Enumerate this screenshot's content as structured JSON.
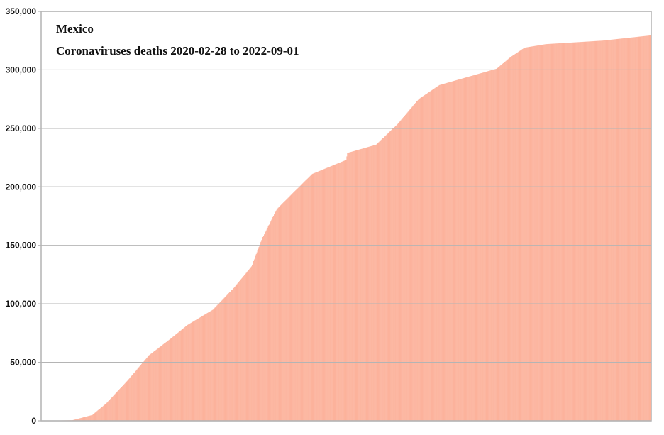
{
  "chart_data": {
    "type": "bar",
    "title": "Mexico",
    "subtitle": "Coronaviruses deaths 2020-02-28 to 2022-09-01",
    "xlabel": "",
    "ylabel": "",
    "x_range": [
      "2020-02-28",
      "2022-09-01"
    ],
    "ylim": [
      0,
      350000
    ],
    "yticks": [
      0,
      50000,
      100000,
      150000,
      200000,
      250000,
      300000,
      350000
    ],
    "ytick_labels": [
      "0",
      "50,000",
      "100,000",
      "150,000",
      "200,000",
      "250,000",
      "300,000",
      "350,000"
    ],
    "grid": true,
    "bar_color": "#fca68c",
    "grid_color": "#b4b4b4",
    "series_points": [
      {
        "date": "2020-02-28",
        "value": 0
      },
      {
        "date": "2020-04-15",
        "value": 500
      },
      {
        "date": "2020-05-15",
        "value": 5000
      },
      {
        "date": "2020-06-05",
        "value": 15000
      },
      {
        "date": "2020-07-07",
        "value": 34500
      },
      {
        "date": "2020-08-08",
        "value": 56000
      },
      {
        "date": "2020-09-09",
        "value": 70000
      },
      {
        "date": "2020-10-05",
        "value": 82000
      },
      {
        "date": "2020-11-12",
        "value": 95000
      },
      {
        "date": "2020-12-14",
        "value": 114000
      },
      {
        "date": "2021-01-09",
        "value": 132000
      },
      {
        "date": "2021-01-25",
        "value": 156000
      },
      {
        "date": "2021-02-16",
        "value": 181000
      },
      {
        "date": "2021-03-09",
        "value": 193000
      },
      {
        "date": "2021-04-10",
        "value": 211000
      },
      {
        "date": "2021-05-31",
        "value": 223000
      },
      {
        "date": "2021-06-02",
        "value": 229000
      },
      {
        "date": "2021-07-15",
        "value": 236000
      },
      {
        "date": "2021-08-16",
        "value": 253500
      },
      {
        "date": "2021-09-17",
        "value": 275000
      },
      {
        "date": "2021-10-18",
        "value": 287000
      },
      {
        "date": "2021-11-30",
        "value": 294000
      },
      {
        "date": "2022-01-12",
        "value": 301000
      },
      {
        "date": "2022-02-02",
        "value": 311000
      },
      {
        "date": "2022-02-23",
        "value": 319000
      },
      {
        "date": "2022-03-27",
        "value": 322000
      },
      {
        "date": "2022-06-20",
        "value": 325000
      },
      {
        "date": "2022-09-01",
        "value": 329500
      }
    ]
  }
}
